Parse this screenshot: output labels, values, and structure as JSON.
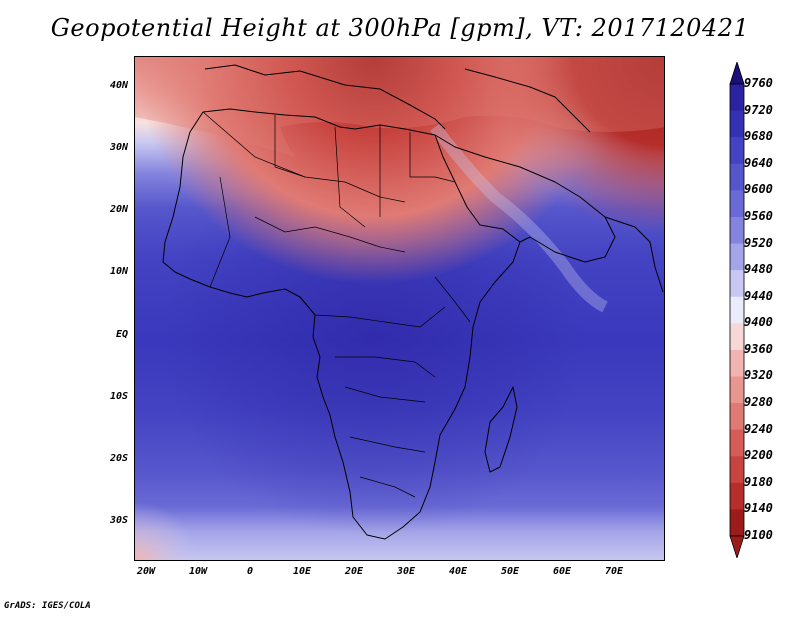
{
  "title": "Geopotential Height at 300hPa [gpm], VT: 2017120421",
  "credit": "GrADS: IGES/COLA",
  "map": {
    "region": "Africa",
    "variable": "Geopotential Height",
    "level": "300hPa",
    "units": "gpm",
    "valid_time": "2017120421",
    "lat_ticks": [
      "40N",
      "30N",
      "20N",
      "10N",
      "EQ",
      "10S",
      "20S",
      "30S"
    ],
    "lon_ticks": [
      "20W",
      "10W",
      "0",
      "10E",
      "20E",
      "30E",
      "40E",
      "50E",
      "60E",
      "70E"
    ]
  },
  "colorbar": {
    "levels": [
      {
        "label": "9760",
        "color": "#1b0f7a"
      },
      {
        "label": "9720",
        "color": "#2a22a0"
      },
      {
        "label": "9680",
        "color": "#3531b4"
      },
      {
        "label": "9640",
        "color": "#4343c3"
      },
      {
        "label": "9600",
        "color": "#5656cc"
      },
      {
        "label": "9560",
        "color": "#6a6ad6"
      },
      {
        "label": "9520",
        "color": "#8484de"
      },
      {
        "label": "9480",
        "color": "#a4a4e8"
      },
      {
        "label": "9440",
        "color": "#c8c8f2"
      },
      {
        "label": "9400",
        "color": "#ecebfb"
      },
      {
        "label": "9360",
        "color": "#f8d8d6"
      },
      {
        "label": "9320",
        "color": "#f2b4b0"
      },
      {
        "label": "9280",
        "color": "#ea9690"
      },
      {
        "label": "9240",
        "color": "#e07a74"
      },
      {
        "label": "9200",
        "color": "#d65c58"
      },
      {
        "label": "9180",
        "color": "#c84440"
      },
      {
        "label": "9140",
        "color": "#b52e2b"
      },
      {
        "label": "9100",
        "color": "#9c1c1c"
      }
    ]
  }
}
